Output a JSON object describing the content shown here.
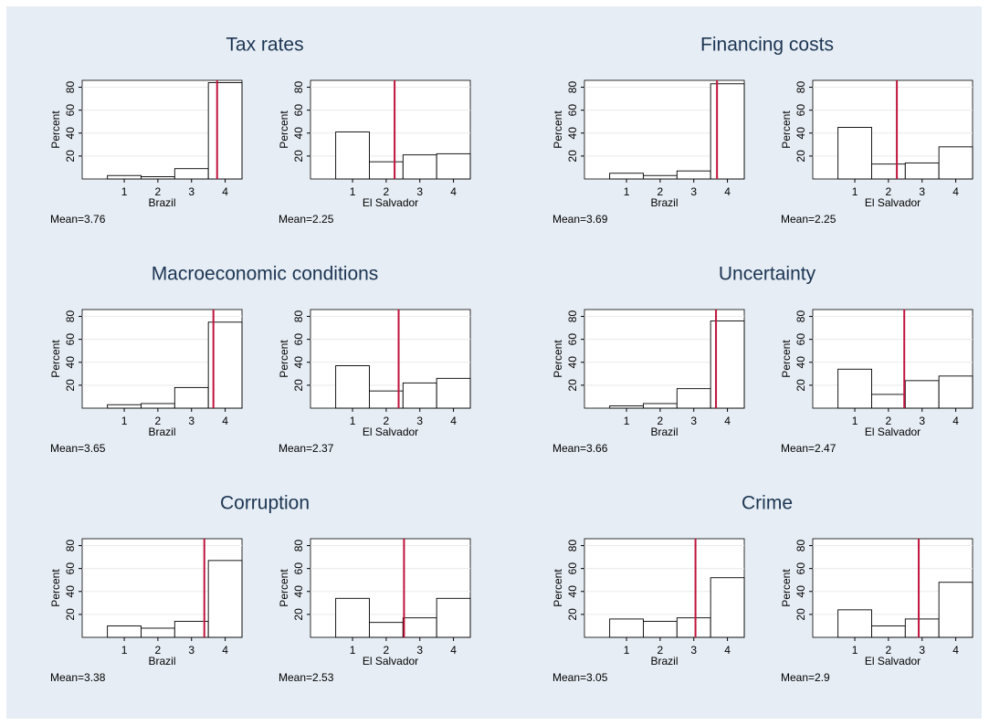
{
  "chart_data": [
    {
      "title": "Tax rates",
      "panels": [
        {
          "type": "bar",
          "x": [
            1,
            2,
            3,
            4
          ],
          "values": [
            3,
            2,
            9,
            84
          ],
          "xlabel": "Brazil",
          "ylabel": "Percent",
          "mean": 3.76,
          "mean_label": "Mean=3.76",
          "xlim": [
            -0.25,
            4.5
          ],
          "xticks": [
            1,
            2,
            3,
            4
          ],
          "ylim": [
            0,
            86
          ],
          "yticks": [
            20,
            40,
            60,
            80
          ],
          "grid": true,
          "color": "#ffffff",
          "mean_color": "#c0143c"
        },
        {
          "type": "bar",
          "x": [
            1,
            2,
            3,
            4
          ],
          "values": [
            41,
            15,
            21,
            22
          ],
          "xlabel": "El Salvador",
          "ylabel": "Percent",
          "mean": 2.25,
          "mean_label": "Mean=2.25",
          "xlim": [
            -0.25,
            4.5
          ],
          "xticks": [
            1,
            2,
            3,
            4
          ],
          "ylim": [
            0,
            86
          ],
          "yticks": [
            20,
            40,
            60,
            80
          ],
          "grid": true,
          "color": "#ffffff",
          "mean_color": "#c0143c"
        }
      ]
    },
    {
      "title": "Financing costs",
      "panels": [
        {
          "type": "bar",
          "x": [
            1,
            2,
            3,
            4
          ],
          "values": [
            5,
            3,
            7,
            83
          ],
          "xlabel": "Brazil",
          "ylabel": "Percent",
          "mean": 3.69,
          "mean_label": "Mean=3.69",
          "xlim": [
            -0.25,
            4.5
          ],
          "xticks": [
            1,
            2,
            3,
            4
          ],
          "ylim": [
            0,
            86
          ],
          "yticks": [
            20,
            40,
            60,
            80
          ],
          "grid": true,
          "color": "#ffffff",
          "mean_color": "#c0143c"
        },
        {
          "type": "bar",
          "x": [
            1,
            2,
            3,
            4
          ],
          "values": [
            45,
            13,
            14,
            28
          ],
          "xlabel": "El Salvador",
          "ylabel": "Percent",
          "mean": 2.25,
          "mean_label": "Mean=2.25",
          "xlim": [
            -0.25,
            4.5
          ],
          "xticks": [
            1,
            2,
            3,
            4
          ],
          "ylim": [
            0,
            86
          ],
          "yticks": [
            20,
            40,
            60,
            80
          ],
          "grid": true,
          "color": "#ffffff",
          "mean_color": "#c0143c"
        }
      ]
    },
    {
      "title": "Macroeconomic conditions",
      "panels": [
        {
          "type": "bar",
          "x": [
            1,
            2,
            3,
            4
          ],
          "values": [
            3,
            4,
            18,
            75
          ],
          "xlabel": "Brazil",
          "ylabel": "Percent",
          "mean": 3.65,
          "mean_label": "Mean=3.65",
          "xlim": [
            -0.25,
            4.5
          ],
          "xticks": [
            1,
            2,
            3,
            4
          ],
          "ylim": [
            0,
            86
          ],
          "yticks": [
            20,
            40,
            60,
            80
          ],
          "grid": true,
          "color": "#ffffff",
          "mean_color": "#c0143c"
        },
        {
          "type": "bar",
          "x": [
            1,
            2,
            3,
            4
          ],
          "values": [
            37,
            15,
            22,
            26
          ],
          "xlabel": "El Salvador",
          "ylabel": "Percent",
          "mean": 2.37,
          "mean_label": "Mean=2.37",
          "xlim": [
            -0.25,
            4.5
          ],
          "xticks": [
            1,
            2,
            3,
            4
          ],
          "ylim": [
            0,
            86
          ],
          "yticks": [
            20,
            40,
            60,
            80
          ],
          "grid": true,
          "color": "#ffffff",
          "mean_color": "#c0143c"
        }
      ]
    },
    {
      "title": "Uncertainty",
      "panels": [
        {
          "type": "bar",
          "x": [
            1,
            2,
            3,
            4
          ],
          "values": [
            2,
            4,
            17,
            76
          ],
          "xlabel": "Brazil",
          "ylabel": "Percent",
          "mean": 3.66,
          "mean_label": "Mean=3.66",
          "xlim": [
            -0.25,
            4.5
          ],
          "xticks": [
            1,
            2,
            3,
            4
          ],
          "ylim": [
            0,
            86
          ],
          "yticks": [
            20,
            40,
            60,
            80
          ],
          "grid": true,
          "color": "#ffffff",
          "mean_color": "#c0143c"
        },
        {
          "type": "bar",
          "x": [
            1,
            2,
            3,
            4
          ],
          "values": [
            34,
            12,
            24,
            28
          ],
          "xlabel": "El Salvador",
          "ylabel": "Percent",
          "mean": 2.47,
          "mean_label": "Mean=2.47",
          "xlim": [
            -0.25,
            4.5
          ],
          "xticks": [
            1,
            2,
            3,
            4
          ],
          "ylim": [
            0,
            86
          ],
          "yticks": [
            20,
            40,
            60,
            80
          ],
          "grid": true,
          "color": "#ffffff",
          "mean_color": "#c0143c"
        }
      ]
    },
    {
      "title": "Corruption",
      "panels": [
        {
          "type": "bar",
          "x": [
            1,
            2,
            3,
            4
          ],
          "values": [
            10,
            8,
            14,
            67
          ],
          "xlabel": "Brazil",
          "ylabel": "Percent",
          "mean": 3.38,
          "mean_label": "Mean=3.38",
          "xlim": [
            -0.25,
            4.5
          ],
          "xticks": [
            1,
            2,
            3,
            4
          ],
          "ylim": [
            0,
            86
          ],
          "yticks": [
            20,
            40,
            60,
            80
          ],
          "grid": true,
          "color": "#ffffff",
          "mean_color": "#c0143c"
        },
        {
          "type": "bar",
          "x": [
            1,
            2,
            3,
            4
          ],
          "values": [
            34,
            13,
            17,
            34
          ],
          "xlabel": "El Salvador",
          "ylabel": "Percent",
          "mean": 2.53,
          "mean_label": "Mean=2.53",
          "xlim": [
            -0.25,
            4.5
          ],
          "xticks": [
            1,
            2,
            3,
            4
          ],
          "ylim": [
            0,
            86
          ],
          "yticks": [
            20,
            40,
            60,
            80
          ],
          "grid": true,
          "color": "#ffffff",
          "mean_color": "#c0143c"
        }
      ]
    },
    {
      "title": "Crime",
      "panels": [
        {
          "type": "bar",
          "x": [
            1,
            2,
            3,
            4
          ],
          "values": [
            16,
            14,
            17,
            52
          ],
          "xlabel": "Brazil",
          "ylabel": "Percent",
          "mean": 3.05,
          "mean_label": "Mean=3.05",
          "xlim": [
            -0.25,
            4.5
          ],
          "xticks": [
            1,
            2,
            3,
            4
          ],
          "ylim": [
            0,
            86
          ],
          "yticks": [
            20,
            40,
            60,
            80
          ],
          "grid": true,
          "color": "#ffffff",
          "mean_color": "#c0143c"
        },
        {
          "type": "bar",
          "x": [
            1,
            2,
            3,
            4
          ],
          "values": [
            24,
            10,
            16,
            48
          ],
          "xlabel": "El Salvador",
          "ylabel": "Percent",
          "mean": 2.9,
          "mean_label": "Mean=2.9",
          "xlim": [
            -0.25,
            4.5
          ],
          "xticks": [
            1,
            2,
            3,
            4
          ],
          "ylim": [
            0,
            86
          ],
          "yticks": [
            20,
            40,
            60,
            80
          ],
          "grid": true,
          "color": "#ffffff",
          "mean_color": "#c0143c"
        }
      ]
    }
  ]
}
